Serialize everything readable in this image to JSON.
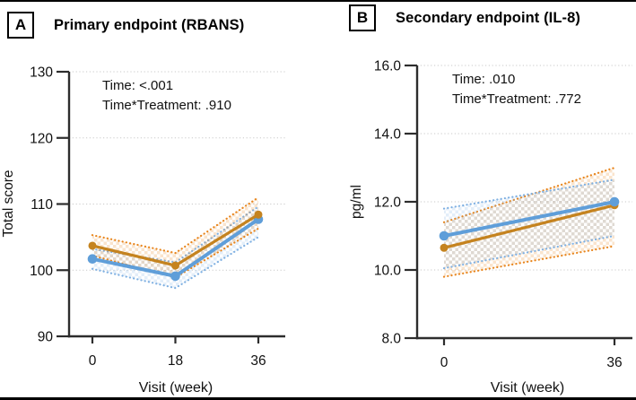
{
  "figure": {
    "background_color": "#ffffff",
    "border_color": "#000000",
    "text_color": "#111111",
    "axis_color": "#2d2d2d",
    "gridline_color": "#c9c9c9"
  },
  "chart_data": [
    {
      "id": "rbans",
      "type": "line",
      "panel_label": "A",
      "title": "Primary endpoint (RBANS)",
      "xlabel": "Visit (week)",
      "ylabel": "Total score",
      "x": [
        0,
        18,
        36
      ],
      "x_tick_labels": [
        "0",
        "18",
        "36"
      ],
      "ylim": [
        90,
        130
      ],
      "y_ticks": [
        90,
        100,
        110,
        120,
        130
      ],
      "y_tick_labels": [
        "90",
        "100",
        "110",
        "120",
        "130"
      ],
      "grid": "horizontal-dotted",
      "legend": "none",
      "annotations": [
        "Time: <.001",
        "Time*Treatment: .910"
      ],
      "series": [
        {
          "name": "treatment-blue",
          "color": "#5f9ed9",
          "band_color": "#7fb0e2",
          "line_width": 4,
          "values": [
            101.7,
            99.1,
            107.7
          ],
          "upper": [
            103.2,
            101.2,
            109.6
          ],
          "lower": [
            100.2,
            97.3,
            105.0
          ]
        },
        {
          "name": "treatment-orange",
          "color": "#c5831f",
          "band_color": "#e8851c",
          "line_width": 3.2,
          "values": [
            103.7,
            100.7,
            108.4
          ],
          "upper": [
            105.3,
            102.6,
            111.0
          ],
          "lower": [
            102.2,
            98.9,
            106.3
          ]
        }
      ]
    },
    {
      "id": "il8",
      "type": "line",
      "panel_label": "B",
      "title": "Secondary endpoint (IL-8)",
      "xlabel": "Visit (week)",
      "ylabel": "pg/ml",
      "x": [
        0,
        36
      ],
      "x_tick_labels": [
        "0",
        "36"
      ],
      "ylim": [
        8,
        16
      ],
      "y_ticks": [
        8,
        10,
        12,
        14,
        16
      ],
      "y_tick_labels": [
        "8.0",
        "10.0",
        "12.0",
        "14.0",
        "16.0"
      ],
      "grid": "horizontal-dotted",
      "legend": "none",
      "annotations": [
        "Time: .010",
        "Time*Treatment: .772"
      ],
      "series": [
        {
          "name": "treatment-orange",
          "color": "#c5831f",
          "band_color": "#e8851c",
          "line_width": 3.2,
          "values": [
            10.65,
            11.9
          ],
          "upper": [
            11.4,
            13.0
          ],
          "lower": [
            9.8,
            10.7
          ]
        },
        {
          "name": "treatment-blue",
          "color": "#5f9ed9",
          "band_color": "#7fb0e2",
          "line_width": 4,
          "values": [
            11.0,
            12.0
          ],
          "upper": [
            11.8,
            12.65
          ],
          "lower": [
            10.05,
            11.0
          ]
        }
      ]
    }
  ]
}
